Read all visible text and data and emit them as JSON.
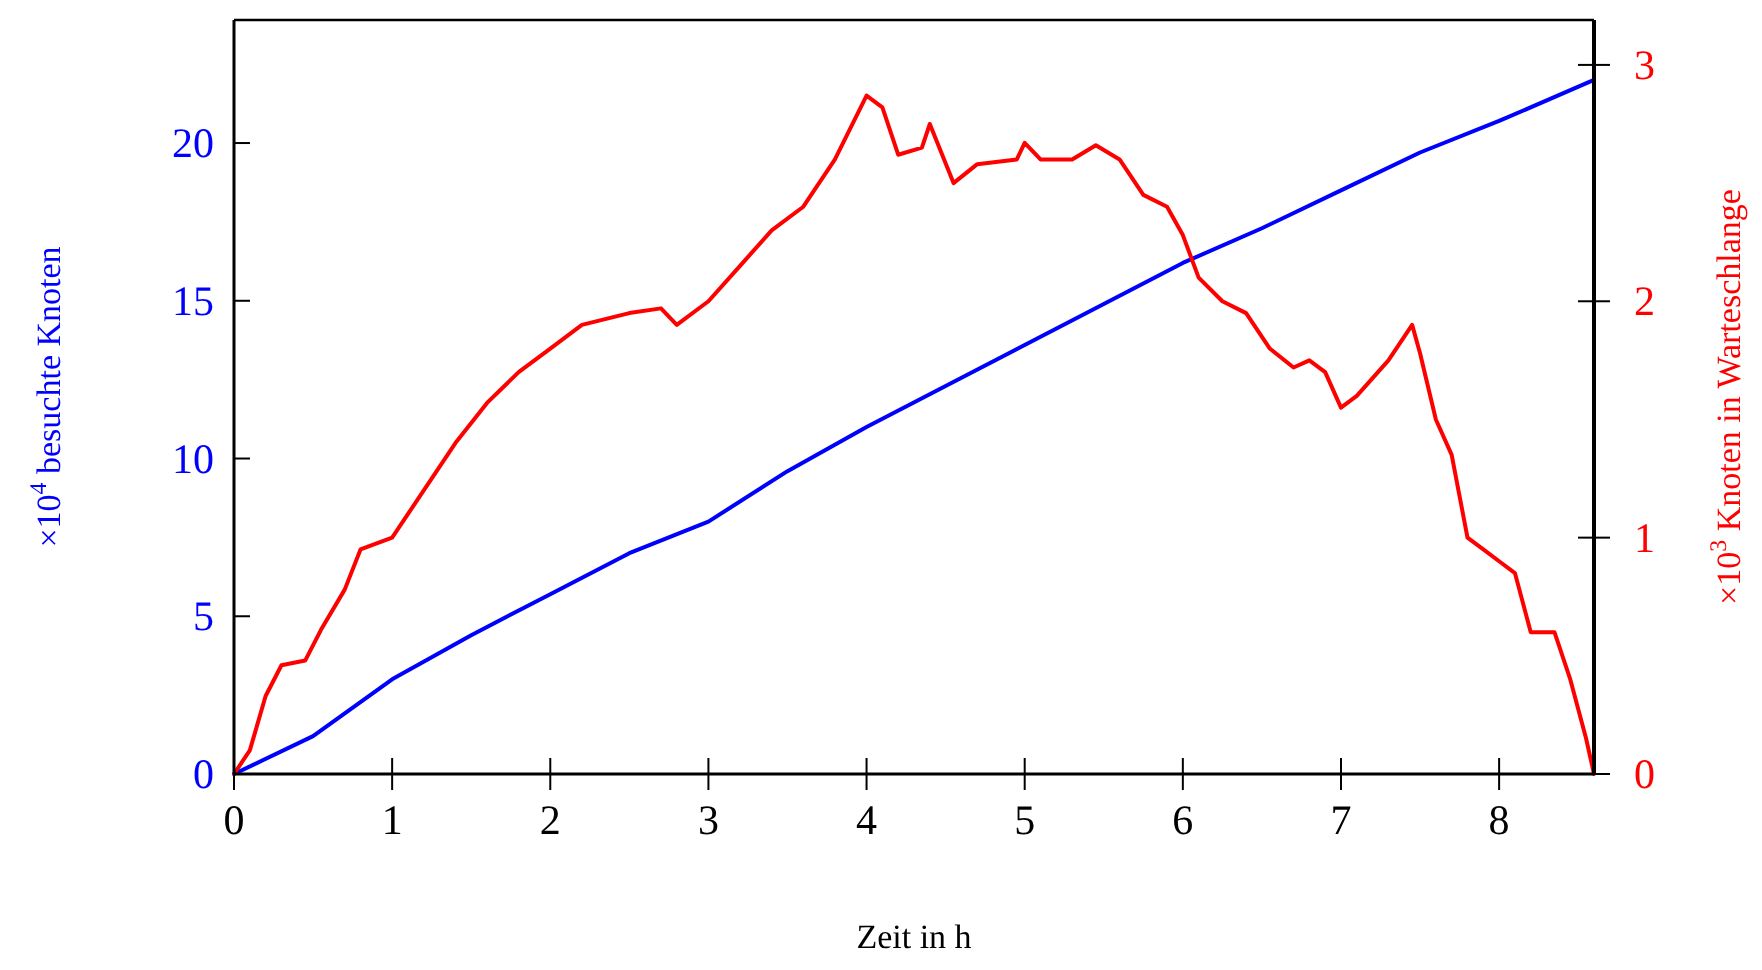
{
  "chart_data": {
    "type": "line",
    "xlabel": "Zeit in h",
    "ylabel": "×10$^{4}$ besuchte Knoten",
    "y2label": "×10$^{3}$ Knoten in Warteschlange",
    "xlim": [
      0,
      8.6
    ],
    "xticks": [
      0,
      1,
      2,
      3,
      4,
      5,
      6,
      7,
      8
    ],
    "ylim": [
      0,
      23.9
    ],
    "yticks": [
      0,
      5,
      10,
      15,
      20
    ],
    "y2lim": [
      0,
      3.19
    ],
    "y2ticks": [
      0,
      1,
      2,
      3
    ],
    "grid": false,
    "marker": "none",
    "line_style": "solid",
    "series": [
      {
        "color": "#0000ff",
        "x": [
          0,
          0.5,
          1,
          1.5,
          2,
          2.5,
          3,
          3.5,
          4,
          4.5,
          5,
          5.5,
          6,
          6.5,
          7,
          7.5,
          8,
          8.6
        ],
        "values": [
          0,
          1.2,
          3,
          4.4,
          5.7,
          7,
          8,
          9.6,
          11,
          12.3,
          13.6,
          14.9,
          16.2,
          17.3,
          18.5,
          19.7,
          20.7,
          22
        ]
      },
      {
        "color": "#ff0000",
        "axis": "y2",
        "x": [
          0,
          0.1,
          0.2,
          0.3,
          0.45,
          0.55,
          0.7,
          0.8,
          1,
          1.2,
          1.4,
          1.6,
          1.8,
          2,
          2.2,
          2.5,
          2.7,
          2.8,
          3,
          3.2,
          3.4,
          3.6,
          3.8,
          4,
          4.1,
          4.2,
          4.35,
          4.4,
          4.55,
          4.7,
          4.95,
          5,
          5.1,
          5.3,
          5.45,
          5.6,
          5.75,
          5.9,
          6,
          6.1,
          6.25,
          6.4,
          6.55,
          6.7,
          6.8,
          6.9,
          7,
          7.1,
          7.3,
          7.45,
          7.5,
          7.6,
          7.7,
          7.8,
          7.9,
          8,
          8.1,
          8.2,
          8.35,
          8.45,
          8.55,
          8.6
        ],
        "values": [
          0,
          0.1,
          0.33,
          0.46,
          0.48,
          0.61,
          0.78,
          0.95,
          1,
          1.2,
          1.4,
          1.57,
          1.7,
          1.8,
          1.9,
          1.95,
          1.97,
          1.9,
          2,
          2.15,
          2.3,
          2.4,
          2.6,
          2.87,
          2.82,
          2.62,
          2.65,
          2.75,
          2.5,
          2.58,
          2.6,
          2.67,
          2.6,
          2.6,
          2.66,
          2.6,
          2.45,
          2.4,
          2.28,
          2.1,
          2,
          1.95,
          1.8,
          1.72,
          1.75,
          1.7,
          1.55,
          1.6,
          1.75,
          1.9,
          1.78,
          1.5,
          1.35,
          1,
          0.95,
          0.9,
          0.85,
          0.6,
          0.6,
          0.4,
          0.15,
          0
        ]
      }
    ]
  }
}
